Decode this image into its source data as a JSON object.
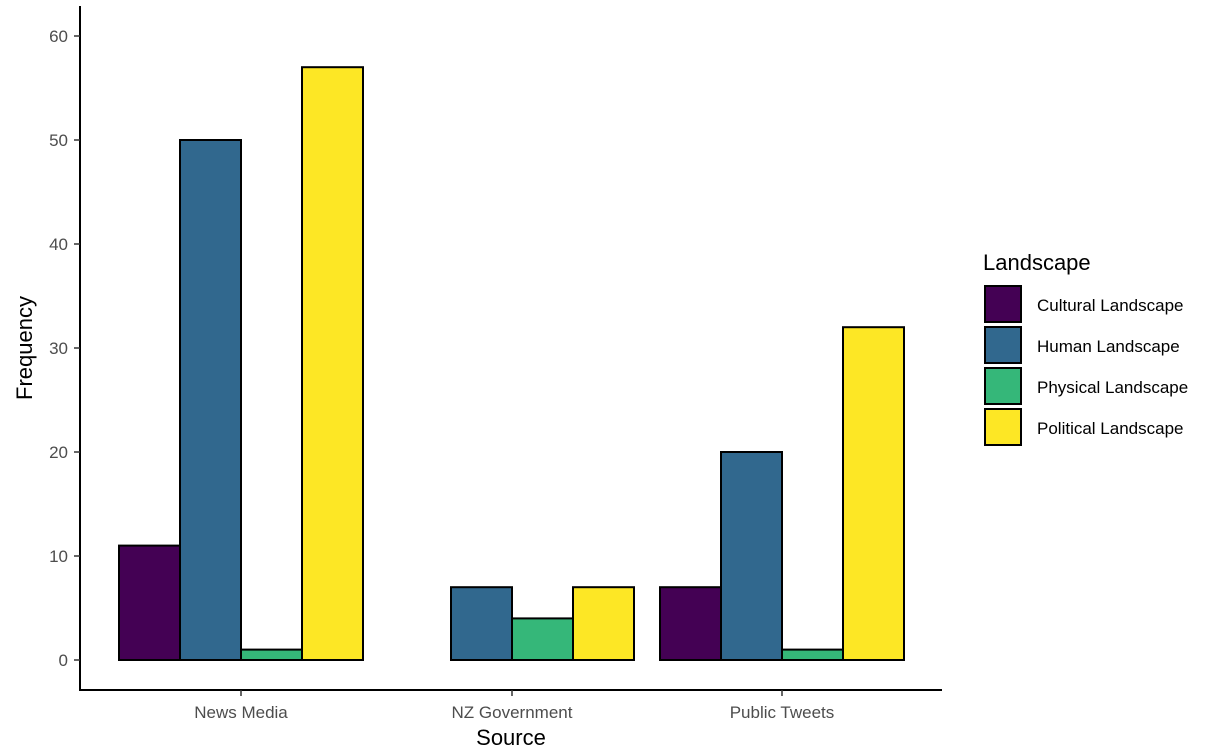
{
  "chart_data": {
    "type": "bar",
    "title": "",
    "xlabel": "Source",
    "ylabel": "Frequency",
    "categories": [
      "News Media",
      "NZ Government",
      "Public Tweets"
    ],
    "series": [
      {
        "name": "Cultural Landscape",
        "color": "#440154",
        "values": [
          11,
          0,
          7
        ]
      },
      {
        "name": "Human Landscape",
        "color": "#31688e",
        "values": [
          50,
          7,
          20
        ]
      },
      {
        "name": "Physical Landscape",
        "color": "#35b779",
        "values": [
          1,
          4,
          1
        ]
      },
      {
        "name": "Political Landscape",
        "color": "#fde725",
        "values": [
          57,
          7,
          32
        ]
      }
    ],
    "yticks": [
      0,
      10,
      20,
      30,
      40,
      50,
      60
    ],
    "ylim": [
      -3,
      63
    ],
    "legend_title": "Landscape",
    "legend_position": "right",
    "grid": false
  }
}
